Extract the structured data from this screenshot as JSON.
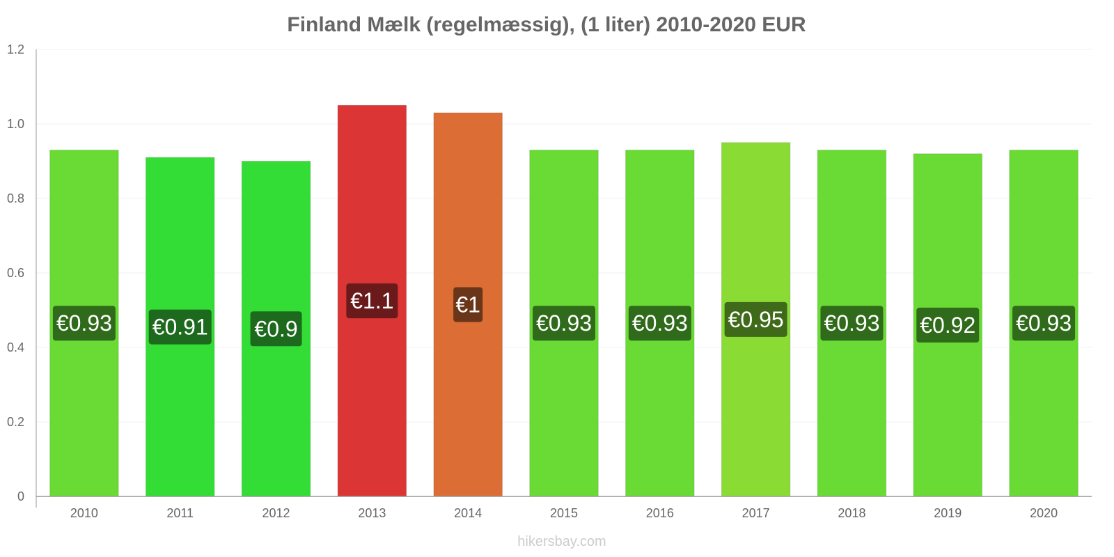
{
  "chart_data": {
    "type": "bar",
    "title": "Finland Mælk (regelmæssig), (1 liter) 2010-2020 EUR",
    "xlabel": "",
    "ylabel": "",
    "ylim": [
      0,
      1.2
    ],
    "yticks": [
      "0",
      "0.2",
      "0.4",
      "0.6",
      "0.8",
      "1.0",
      "1.2"
    ],
    "ytick_values": [
      0,
      0.2,
      0.4,
      0.6,
      0.8,
      1.0,
      1.2
    ],
    "categories": [
      "2010",
      "2011",
      "2012",
      "2013",
      "2014",
      "2015",
      "2016",
      "2017",
      "2018",
      "2019",
      "2020"
    ],
    "values": [
      0.93,
      0.91,
      0.9,
      1.05,
      1.03,
      0.93,
      0.93,
      0.95,
      0.93,
      0.92,
      0.93
    ],
    "data_labels": [
      "€0.93",
      "€0.91",
      "€0.9",
      "€1.1",
      "€1",
      "€0.93",
      "€0.93",
      "€0.95",
      "€0.93",
      "€0.92",
      "€0.93"
    ],
    "bar_colors": [
      "#6ada35",
      "#34dc36",
      "#34dc36",
      "#db3535",
      "#dc6e35",
      "#6ada35",
      "#6ada35",
      "#8adc35",
      "#6ada35",
      "#6ada35",
      "#6ada35"
    ],
    "label_colors": [
      "#2f6b1a",
      "#1d6a1e",
      "#1d6a1e",
      "#6a1a1a",
      "#6a361a",
      "#2f6b1a",
      "#2f6b1a",
      "#3f6a1a",
      "#2f6b1a",
      "#2f6b1a",
      "#2f6b1a"
    ],
    "grid": true,
    "legend": "none"
  },
  "watermark": "hikersbay.com"
}
